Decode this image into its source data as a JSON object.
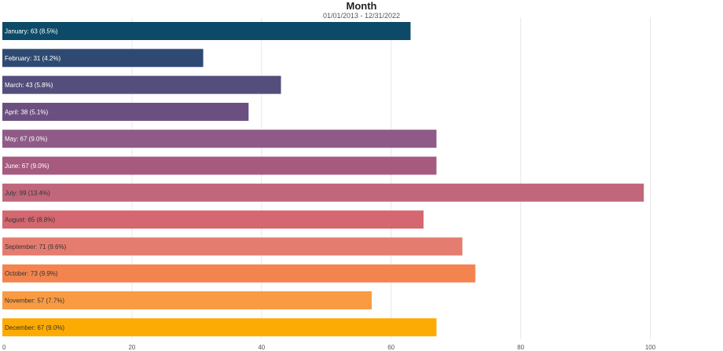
{
  "chart_data": {
    "type": "bar",
    "orientation": "horizontal",
    "title": "Month",
    "subtitle": "01/01/2013 - 12/31/2022",
    "xlabel": "",
    "ylabel": "",
    "xlim": [
      0,
      100
    ],
    "x_ticks": [
      "0",
      "20",
      "40",
      "60",
      "80",
      "100"
    ],
    "grid": true,
    "categories": [
      "January",
      "February",
      "March",
      "April",
      "May",
      "June",
      "July",
      "August",
      "September",
      "October",
      "November",
      "December"
    ],
    "values": [
      63,
      31,
      43,
      38,
      67,
      67,
      99,
      65,
      71,
      73,
      57,
      67
    ],
    "labels": [
      "January: 63 (8.5%)",
      "February: 31 (4.2%)",
      "March: 43 (5.8%)",
      "April: 38 (5.1%)",
      "May: 67 (9.0%)",
      "June: 67 (9.0%)",
      "July: 99 (13.4%)",
      "August: 65 (8.8%)",
      "September: 71 (9.6%)",
      "October: 73 (9.9%)",
      "November: 57 (7.7%)",
      "December: 67 (9.0%)"
    ],
    "colors": [
      "#0d4a67",
      "#2f4a72",
      "#534e7c",
      "#6b4f80",
      "#8f5a87",
      "#a65a7e",
      "#c0677c",
      "#d4676f",
      "#e57c70",
      "#f38450",
      "#f99b42",
      "#fcaa04"
    ],
    "label_colors": [
      "#ffffff",
      "#ffffff",
      "#ffffff",
      "#ffffff",
      "#ffffff",
      "#ffffff",
      "#333333",
      "#333333",
      "#333333",
      "#333333",
      "#333333",
      "#333333"
    ]
  }
}
